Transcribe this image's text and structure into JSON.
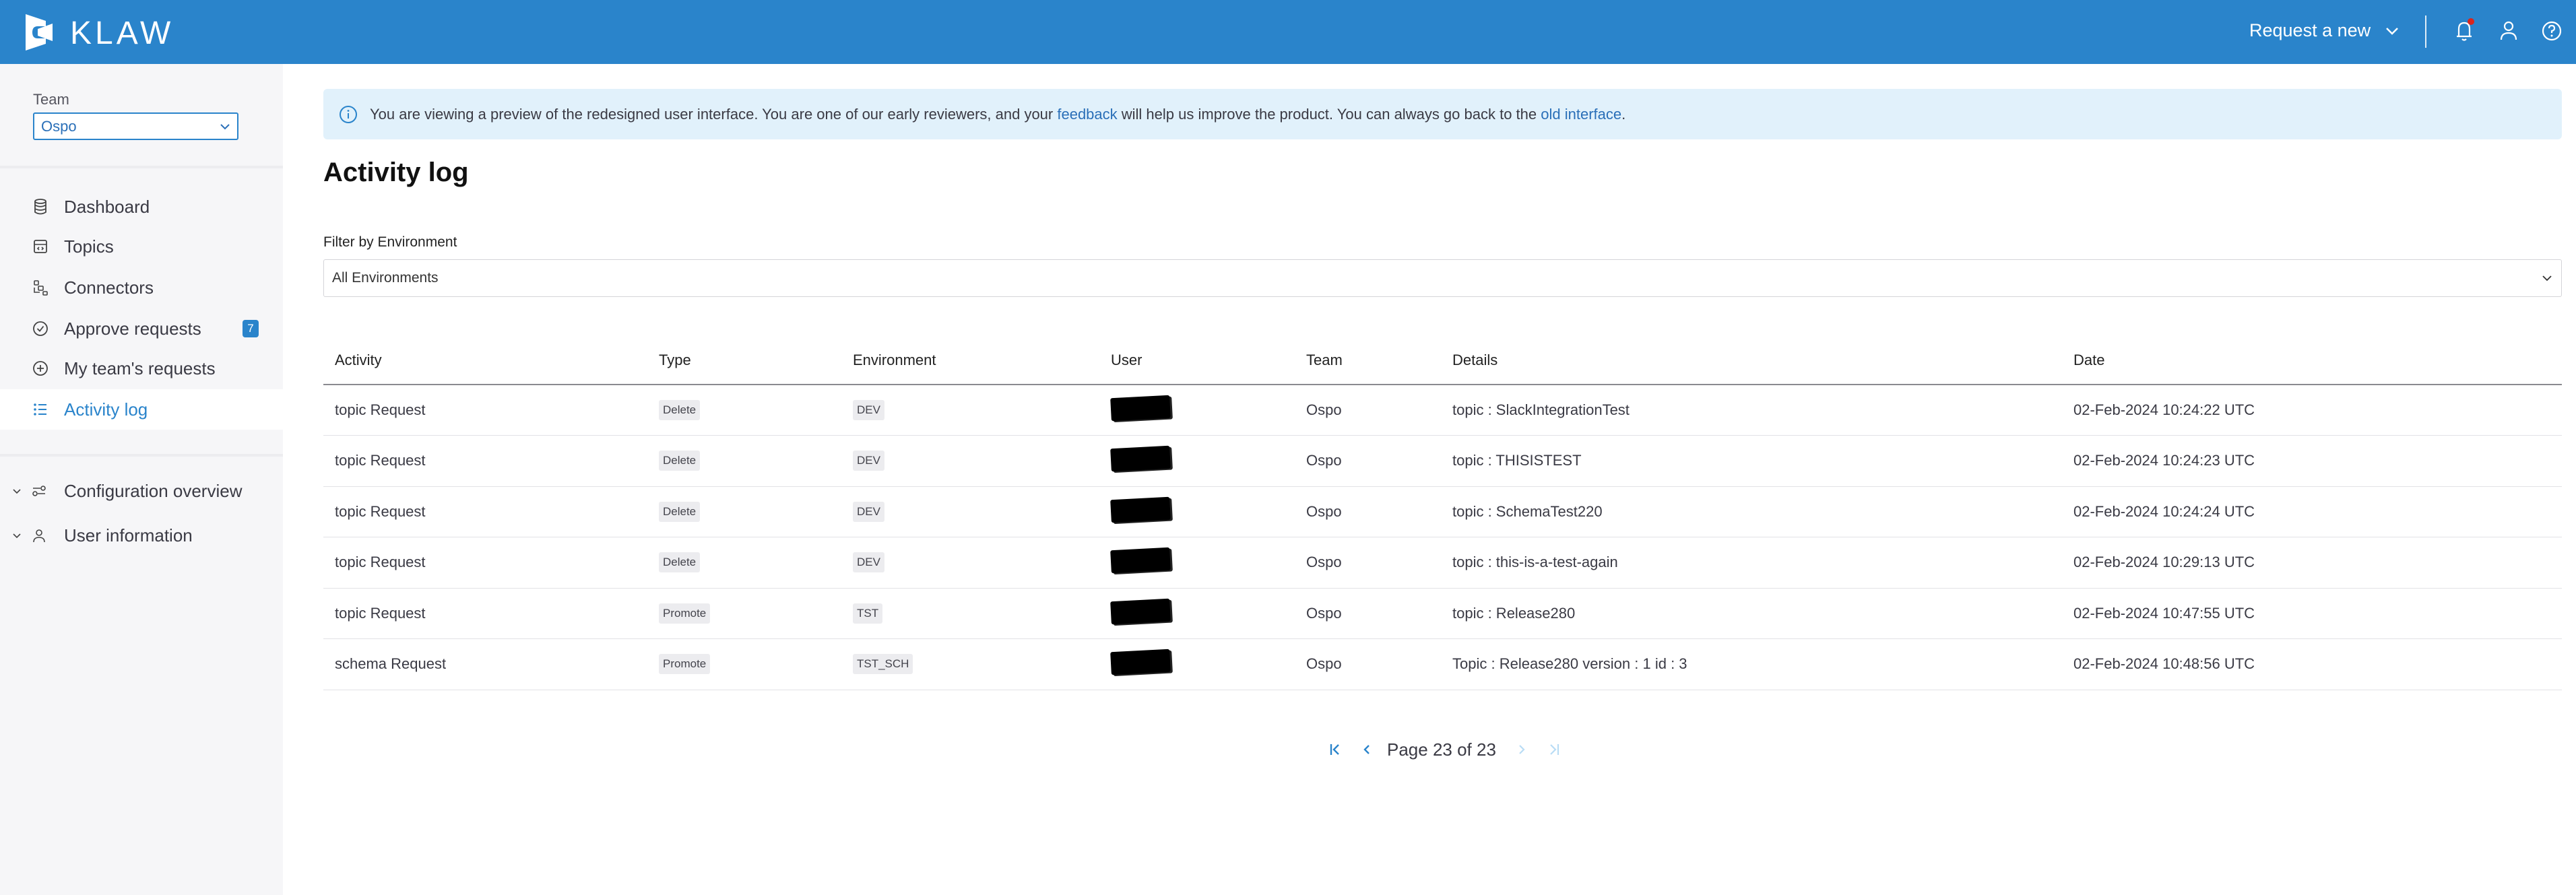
{
  "header": {
    "brand": "KLAW",
    "request_new_label": "Request a new",
    "icons": [
      "klaw-logo",
      "chevron-down-icon",
      "bell-icon",
      "user-icon",
      "help-icon"
    ],
    "notification_dot_color": "#d9251d",
    "brand_color": "#2a84cb"
  },
  "sidebar": {
    "team_label": "Team",
    "team_value": "Ospo",
    "items": [
      {
        "label": "Dashboard",
        "icon": "database-icon"
      },
      {
        "label": "Topics",
        "icon": "code-window-icon"
      },
      {
        "label": "Connectors",
        "icon": "connectors-icon"
      },
      {
        "label": "Approve requests",
        "icon": "check-circle-icon",
        "badge": "7"
      },
      {
        "label": "My team's requests",
        "icon": "plus-circle-icon"
      },
      {
        "label": "Activity log",
        "icon": "list-icon",
        "active": true
      }
    ],
    "groups": [
      {
        "label": "Configuration overview",
        "icon": "settings-sliders-icon"
      },
      {
        "label": "User information",
        "icon": "user-icon"
      }
    ]
  },
  "banner": {
    "text_before": "You are viewing a preview of the redesigned user interface. You are one of our early reviewers, and your ",
    "feedback_link": "feedback",
    "text_middle": " will help us improve the product. You can always go back to the ",
    "old_link": "old interface",
    "text_after": "."
  },
  "main": {
    "title": "Activity log",
    "filter_label": "Filter by Environment",
    "filter_value": "All Environments"
  },
  "table": {
    "columns": [
      "Activity",
      "Type",
      "Environment",
      "User",
      "Team",
      "Details",
      "Date"
    ],
    "rows": [
      {
        "activity": "topic Request",
        "type": "Delete",
        "environment": "DEV",
        "team": "Ospo",
        "details": "topic : SlackIntegrationTest",
        "date": "02-Feb-2024 10:24:22 UTC"
      },
      {
        "activity": "topic Request",
        "type": "Delete",
        "environment": "DEV",
        "team": "Ospo",
        "details": "topic : THISISTEST",
        "date": "02-Feb-2024 10:24:23 UTC"
      },
      {
        "activity": "topic Request",
        "type": "Delete",
        "environment": "DEV",
        "team": "Ospo",
        "details": "topic : SchemaTest220",
        "date": "02-Feb-2024 10:24:24 UTC"
      },
      {
        "activity": "topic Request",
        "type": "Delete",
        "environment": "DEV",
        "team": "Ospo",
        "details": "topic : this-is-a-test-again",
        "date": "02-Feb-2024 10:29:13 UTC"
      },
      {
        "activity": "topic Request",
        "type": "Promote",
        "environment": "TST",
        "team": "Ospo",
        "details": "topic : Release280",
        "date": "02-Feb-2024 10:47:55 UTC"
      },
      {
        "activity": "schema Request",
        "type": "Promote",
        "environment": "TST_SCH",
        "team": "Ospo",
        "details": "Topic : Release280 version : 1 id : 3",
        "date": "02-Feb-2024 10:48:56 UTC"
      }
    ]
  },
  "pagination": {
    "text": "Page 23 of 23",
    "current": 23,
    "total": 23
  }
}
